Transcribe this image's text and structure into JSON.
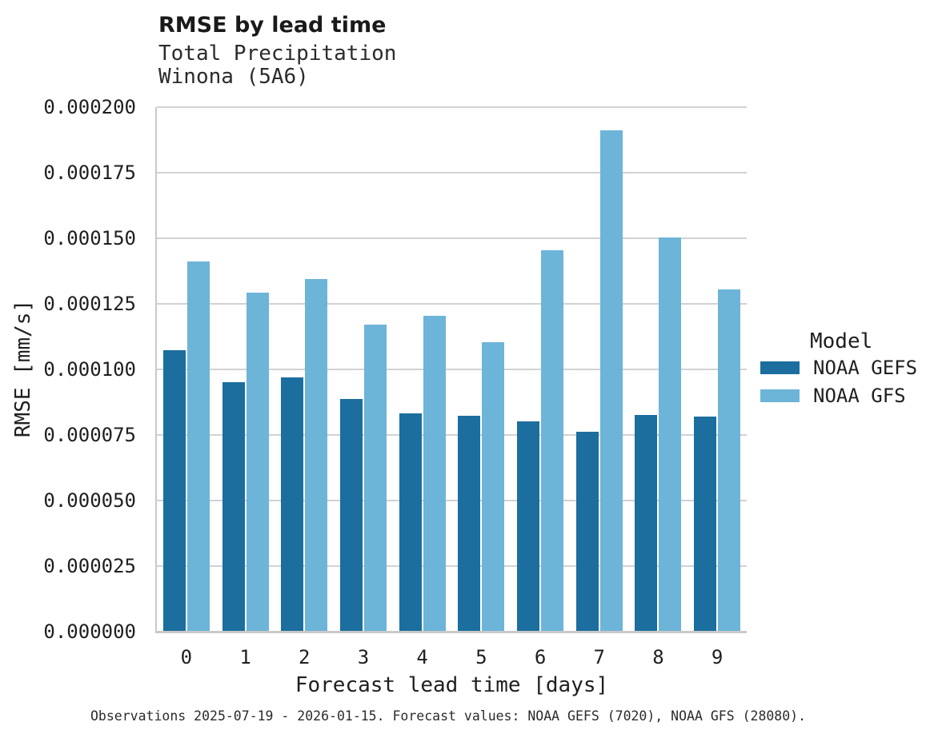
{
  "chart": {
    "title": "RMSE by lead time",
    "subtitle_line1": "Total Precipitation",
    "subtitle_line2": "Winona (5A6)",
    "ylabel": "RMSE [mm/s]",
    "xlabel": "Forecast lead time [days]",
    "caption": "Observations 2025-07-19 - 2026-01-15. Forecast values: NOAA GEFS (7020), NOAA GFS (28080)."
  },
  "legend": {
    "title": "Model"
  },
  "chart_data": {
    "type": "bar",
    "grouped": true,
    "categories": [
      "0",
      "1",
      "2",
      "3",
      "4",
      "5",
      "6",
      "7",
      "8",
      "9"
    ],
    "series": [
      {
        "name": "NOAA GEFS",
        "color": "#1b6e9e",
        "values": [
          0.0001073,
          9.5e-05,
          9.68e-05,
          8.87e-05,
          8.32e-05,
          8.22e-05,
          8e-05,
          7.62e-05,
          8.27e-05,
          8.2e-05
        ]
      },
      {
        "name": "NOAA GFS",
        "color": "#6db4d9",
        "values": [
          0.000141,
          0.0001292,
          0.0001343,
          0.0001171,
          0.0001203,
          0.0001104,
          0.0001452,
          0.0001911,
          0.0001502,
          0.0001305
        ]
      }
    ],
    "title": "RMSE by lead time",
    "subtitle": "Total Precipitation / Winona (5A6)",
    "xlabel": "Forecast lead time [days]",
    "ylabel": "RMSE [mm/s]",
    "ylim": [
      0,
      0.0002
    ],
    "ytick_step": 2.5e-05,
    "ytick_decimals": 6,
    "grid": "horizontal",
    "legend_position": "right",
    "legend_title": "Model"
  }
}
